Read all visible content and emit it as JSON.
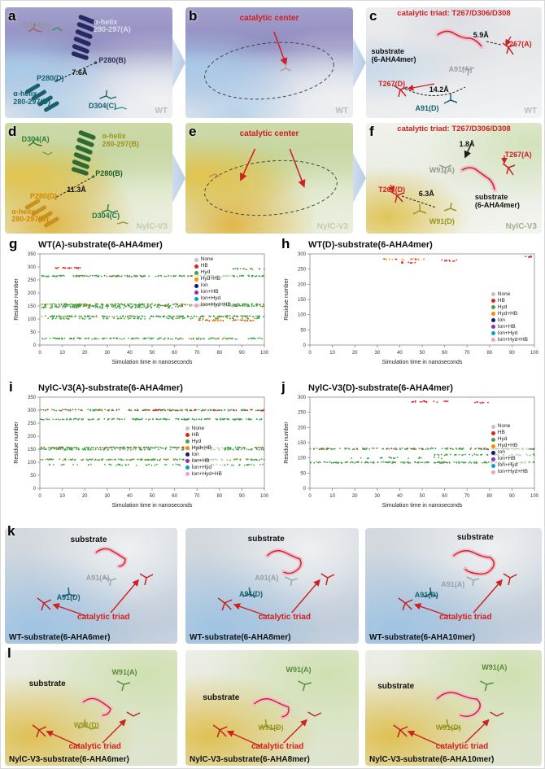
{
  "colors": {
    "accent_red": "#d02020",
    "teal": "#17606e",
    "green": "#2e7d32",
    "olive": "#97971f",
    "orange": "#d18a00",
    "gray": "#8f969c",
    "navy_helix": "#262a60",
    "pink_substrate": "#f3b9c7"
  },
  "legend_items": [
    {
      "label": "None",
      "color": "#c2c2c2"
    },
    {
      "label": "HB",
      "color": "#e3211c"
    },
    {
      "label": "Hyd",
      "color": "#43a047"
    },
    {
      "label": "Hyd+HB",
      "color": "#fb8c00"
    },
    {
      "label": "Ion",
      "color": "#16166b"
    },
    {
      "label": "Ion+HB",
      "color": "#8b2fb8"
    },
    {
      "label": "Ion+Hyd",
      "color": "#00a3c4"
    },
    {
      "label": "Ion+Hyd+HB",
      "color": "#f2a0c0"
    }
  ],
  "panels": {
    "a": {
      "letter": "a",
      "labels": {
        "d304a": "D304(A)",
        "helix_a": "α-helix\n280-297(A)",
        "p280b": "P280(B)",
        "dist": "7.6Å",
        "p280d": "P280(D)",
        "helix_d": "α-helix\n280-297(D)",
        "d304c": "D304(C)",
        "variant": "WT"
      }
    },
    "b": {
      "letter": "b",
      "labels": {
        "center": "catalytic center",
        "variant": "WT"
      }
    },
    "c": {
      "letter": "c",
      "labels": {
        "title": "catalytic triad: T267/D306/D308",
        "d1": "5.9Å",
        "t267a": "T267(A)",
        "substrate": "substrate\n(6-AHA4mer)",
        "a91a": "A91(A)",
        "t267d": "T267(D)",
        "d2": "14.2Å",
        "a91d": "A91(D)",
        "variant": "WT"
      }
    },
    "d": {
      "letter": "d",
      "labels": {
        "d304a": "D304(A)",
        "helix_b": "α-helix\n280-297(B)",
        "p280b": "P280(B)",
        "dist": "11.3Å",
        "p280d": "P280(D)",
        "d304c": "D304(C)",
        "helix_d": "α-helix\n280-297(D)",
        "variant": "NylC-V3"
      }
    },
    "e": {
      "letter": "e",
      "labels": {
        "center": "catalytic center",
        "variant": "NylC-V3"
      }
    },
    "f": {
      "letter": "f",
      "labels": {
        "title": "catalytic triad: T267/D306/D308",
        "d1": "1.8Å",
        "t267a": "T267(A)",
        "w91a": "W91(A)",
        "t267d": "T267(D)",
        "d2": "6.3Å",
        "substrate": "substrate\n(6-AHA4mer)",
        "w91d": "W91(D)",
        "variant": "NylC-V3"
      }
    },
    "k": {
      "letter": "k",
      "sub": [
        {
          "substrate": "substrate",
          "ra": "A91(A)",
          "rd": "A91(D)",
          "triad": "catalytic triad",
          "caption": "WT-substrate(6-AHA6mer)"
        },
        {
          "substrate": "substrate",
          "ra": "A91(A)",
          "rd": "A91(D)",
          "triad": "catalytic triad",
          "caption": "WT-substrate(6-AHA8mer)"
        },
        {
          "substrate": "substrate",
          "ra": "A91(A)",
          "rd": "A91(D)",
          "triad": "catalytic triad",
          "caption": "WT-substrate(6-AHA10mer)"
        }
      ]
    },
    "l": {
      "letter": "l",
      "sub": [
        {
          "substrate": "substrate",
          "ra": "W91(A)",
          "rd": "W91(D)",
          "triad": "catalytic triad",
          "caption": "NylC-V3-substrate(6-AHA6mer)"
        },
        {
          "substrate": "substrate",
          "ra": "W91(A)",
          "rd": "W91(D)",
          "triad": "catalytic triad",
          "caption": "NylC-V3-substrate(6-AHA8mer)"
        },
        {
          "substrate": "substrate",
          "ra": "W91(A)",
          "rd": "W91(D)",
          "triad": "catalytic triad",
          "caption": "NylC-V3-substrate(6-AHA10mer)"
        }
      ]
    }
  },
  "chart_data": [
    {
      "letter": "g",
      "type": "scatter",
      "title": "WT(A)-substrate(6-AHA4mer)",
      "xlabel": "Simulation time in nanoseconds",
      "ylabel": "Residue number",
      "xlim": [
        0,
        100
      ],
      "xticks": [
        0,
        10,
        20,
        30,
        40,
        50,
        60,
        70,
        80,
        90,
        100
      ],
      "ylim": [
        0,
        350
      ],
      "yticks": [
        0,
        50,
        100,
        150,
        200,
        250,
        300,
        350
      ],
      "legend_pos": [
        0.68,
        0.02
      ],
      "bands": [
        {
          "y": 296,
          "x0": 7,
          "x1": 19,
          "type": "HB",
          "density": 0.7
        },
        {
          "y": 292,
          "x0": 86,
          "x1": 100,
          "type": "Hyd",
          "density": 0.5,
          "mix": "HB",
          "mixp": 0.2
        },
        {
          "y": 265,
          "x0": 0,
          "x1": 100,
          "type": "Hyd",
          "density": 0.95,
          "mix": "HB",
          "mixp": 0.05
        },
        {
          "y": 156,
          "x0": 0,
          "x1": 100,
          "type": "Hyd",
          "density": 1.0,
          "mix": "Hyd+HB",
          "mixp": 0.12
        },
        {
          "y": 150,
          "x0": 0,
          "x1": 100,
          "type": "Hyd",
          "density": 0.8,
          "mix": "HB",
          "mixp": 0.08
        },
        {
          "y": 144,
          "x0": 0,
          "x1": 62,
          "type": "Hyd",
          "density": 0.5
        },
        {
          "y": 110,
          "x0": 0,
          "x1": 100,
          "type": "Hyd",
          "density": 0.95,
          "mix": "Hyd+HB",
          "mixp": 0.1
        },
        {
          "y": 102,
          "x0": 2,
          "x1": 100,
          "type": "Hyd",
          "density": 0.4
        },
        {
          "y": 95,
          "x0": 70,
          "x1": 97,
          "type": "Hyd+HB",
          "density": 0.6,
          "mix": "HB",
          "mixp": 0.25
        },
        {
          "y": 25,
          "x0": 0,
          "x1": 100,
          "type": "Hyd",
          "density": 0.8,
          "mix": "Hyd+HB",
          "mixp": 0.05
        }
      ]
    },
    {
      "letter": "h",
      "type": "scatter",
      "title": "WT(D)-substrate(6-AHA4mer)",
      "xlabel": "Simulation time in nanoseconds",
      "ylabel": "Residue number",
      "xlim": [
        0,
        100
      ],
      "xticks": [
        0,
        10,
        20,
        30,
        40,
        50,
        60,
        70,
        80,
        90,
        100
      ],
      "ylim": [
        0,
        300
      ],
      "yticks": [
        0,
        50,
        100,
        150,
        200,
        250,
        300
      ],
      "legend_pos": [
        0.8,
        0.4
      ],
      "bands": [
        {
          "y": 282,
          "x0": 33,
          "x1": 51,
          "type": "Hyd+HB",
          "density": 0.5,
          "mix": "HB",
          "mixp": 0.4
        },
        {
          "y": 278,
          "x0": 58,
          "x1": 67,
          "type": "HB",
          "density": 0.5
        },
        {
          "y": 272,
          "x0": 40,
          "x1": 47,
          "type": "HB",
          "density": 0.4
        },
        {
          "y": 290,
          "x0": 96,
          "x1": 99,
          "type": "HB",
          "density": 0.8
        }
      ]
    },
    {
      "letter": "i",
      "type": "scatter",
      "title": "NylC-V3(A)-substrate(6-AHA4mer)",
      "xlabel": "Simulation time in nanoseconds",
      "ylabel": "Residue number",
      "xlim": [
        0,
        100
      ],
      "xticks": [
        0,
        10,
        20,
        30,
        40,
        50,
        60,
        70,
        80,
        90,
        100
      ],
      "ylim": [
        0,
        350
      ],
      "yticks": [
        0,
        50,
        100,
        150,
        200,
        250,
        300,
        350
      ],
      "legend_pos": [
        0.64,
        0.3
      ],
      "bands": [
        {
          "y": 300,
          "x0": 0,
          "x1": 100,
          "type": "Hyd",
          "density": 0.95,
          "mix": "HB",
          "mixp": 0.3
        },
        {
          "y": 265,
          "x0": 0,
          "x1": 100,
          "type": "Hyd",
          "density": 0.8
        },
        {
          "y": 156,
          "x0": 0,
          "x1": 100,
          "type": "Hyd",
          "density": 1.0,
          "mix": "HB",
          "mixp": 0.15
        },
        {
          "y": 149,
          "x0": 0,
          "x1": 100,
          "type": "Hyd",
          "density": 0.6
        },
        {
          "y": 110,
          "x0": 0,
          "x1": 100,
          "type": "Hyd",
          "density": 0.95,
          "mix": "Hyd+HB",
          "mixp": 0.12
        },
        {
          "y": 90,
          "x0": 4,
          "x1": 100,
          "type": "Hyd",
          "density": 0.35
        }
      ]
    },
    {
      "letter": "j",
      "type": "scatter",
      "title": "NylC-V3(D)-substrate(6-AHA4mer)",
      "xlabel": "Simulation time in nanoseconds",
      "ylabel": "Residue number",
      "xlim": [
        0,
        100
      ],
      "xticks": [
        0,
        10,
        20,
        30,
        40,
        50,
        60,
        70,
        80,
        90,
        100
      ],
      "ylim": [
        0,
        300
      ],
      "yticks": [
        0,
        50,
        100,
        150,
        200,
        250,
        300
      ],
      "legend_pos": [
        0.8,
        0.28
      ],
      "bands": [
        {
          "y": 285,
          "x0": 44,
          "x1": 64,
          "type": "HB",
          "density": 0.45
        },
        {
          "y": 282,
          "x0": 73,
          "x1": 80,
          "type": "HB",
          "density": 0.45
        },
        {
          "y": 130,
          "x0": 0,
          "x1": 100,
          "type": "Hyd",
          "density": 0.95,
          "mix": "HB",
          "mixp": 0.15
        },
        {
          "y": 110,
          "x0": 55,
          "x1": 100,
          "type": "Hyd",
          "density": 0.55
        },
        {
          "y": 100,
          "x0": 18,
          "x1": 60,
          "type": "Hyd",
          "density": 0.25
        },
        {
          "y": 85,
          "x0": 0,
          "x1": 100,
          "type": "Hyd",
          "density": 0.9,
          "mix": "Hyd+HB",
          "mixp": 0.06
        }
      ]
    }
  ]
}
